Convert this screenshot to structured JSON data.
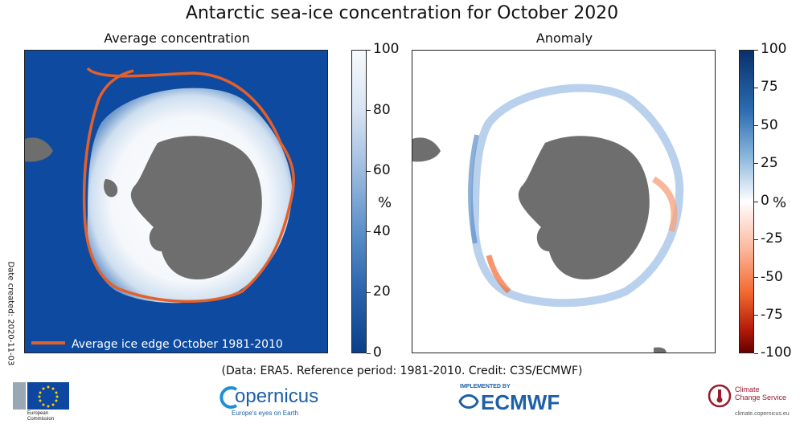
{
  "title": "Antarctic sea-ice concentration for October 2020",
  "left_panel": {
    "subtitle": "Average concentration",
    "legend_label": "Average ice edge October 1981-2010",
    "colorbar": {
      "ticks": [
        "100",
        "80",
        "60",
        "40",
        "20",
        "0"
      ],
      "values": [
        100,
        80,
        60,
        40,
        20,
        0
      ],
      "unit": "%",
      "colors": [
        "#f7f9fc",
        "#d7e4f2",
        "#9cbbdf",
        "#5b8fc8",
        "#2a63ad",
        "#0a3f8c"
      ]
    },
    "colors": {
      "ocean": "#0d4aa0",
      "land": "#6e6e6e",
      "ice_edge": "#e4602a"
    }
  },
  "right_panel": {
    "subtitle": "Anomaly",
    "colorbar": {
      "ticks": [
        "100",
        "75",
        "50",
        "25",
        "0",
        "-25",
        "-50",
        "-75",
        "-100"
      ],
      "values": [
        100,
        75,
        50,
        25,
        0,
        -25,
        -50,
        -75,
        -100
      ],
      "unit": "%",
      "colors": [
        "#08306b",
        "#2d6db1",
        "#89b6dc",
        "#ffffff",
        "#fcbba1",
        "#f26a30",
        "#b51d0a",
        "#670000"
      ]
    },
    "colors": {
      "background": "#ffffff",
      "land": "#6e6e6e",
      "positive": "#8ab4e0",
      "negative": "#f29a7a"
    }
  },
  "date_created": "Date created: 2020-11-03",
  "credits": "(Data: ERA5.  Reference period: 1981-2010.  Credit: C3S/ECMWF)",
  "logos": {
    "eu_line1": "European",
    "eu_line2": "Commission",
    "copernicus": "opernicus",
    "copernicus_tagline": "Europe's eyes on Earth",
    "ecmwf_implemented": "IMPLEMENTED BY",
    "ecmwf": "ECMWF",
    "c3s_line1": "Climate",
    "c3s_line2": "Change Service",
    "c3s_url": "climate.copernicus.eu"
  }
}
